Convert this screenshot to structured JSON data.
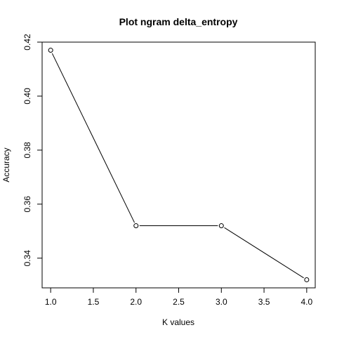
{
  "chart_data": {
    "type": "line",
    "title": "Plot ngram delta_entropy",
    "xlabel": "K values",
    "ylabel": "Accuracy",
    "x": [
      1.0,
      2.0,
      3.0,
      4.0
    ],
    "y": [
      0.417,
      0.352,
      0.352,
      0.332
    ],
    "xlim": [
      0.9,
      4.1
    ],
    "ylim": [
      0.329,
      0.42
    ],
    "xticks": [
      1.0,
      1.5,
      2.0,
      2.5,
      3.0,
      3.5,
      4.0
    ],
    "xtick_labels": [
      "1.0",
      "1.5",
      "2.0",
      "2.5",
      "3.0",
      "3.5",
      "4.0"
    ],
    "yticks": [
      0.34,
      0.36,
      0.38,
      0.4,
      0.42
    ],
    "ytick_labels": [
      "0.34",
      "0.36",
      "0.38",
      "0.40",
      "0.42"
    ],
    "marker": "open-circle",
    "grid": false,
    "line_color": "#000000",
    "background": "#ffffff"
  }
}
